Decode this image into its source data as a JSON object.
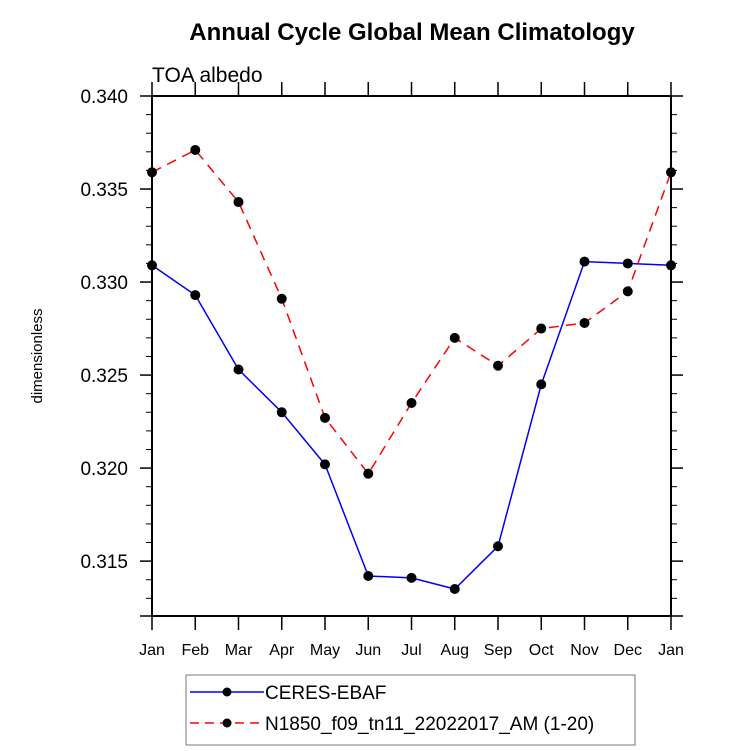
{
  "chart_data": {
    "type": "line",
    "title": "Annual Cycle Global Mean Climatology",
    "subtitle": "TOA albedo",
    "xlabel": "",
    "ylabel": "dimensionless",
    "categories": [
      "Jan",
      "Feb",
      "Mar",
      "Apr",
      "May",
      "Jun",
      "Jul",
      "Aug",
      "Sep",
      "Oct",
      "Nov",
      "Dec",
      "Jan"
    ],
    "ylim": [
      0.31205,
      0.34
    ],
    "yticks": [
      0.315,
      0.32,
      0.325,
      0.33,
      0.335,
      0.34
    ],
    "ytick_labels": [
      "0.315",
      "0.320",
      "0.325",
      "0.330",
      "0.335",
      "0.340"
    ],
    "y_minor_step": 0.001,
    "grid": false,
    "legend_position": "bottom-center",
    "series": [
      {
        "name": "CERES-EBAF",
        "color": "#0000ff",
        "line_style": "solid",
        "marker": "filled-circle",
        "marker_color": "#000000",
        "values": [
          0.3309,
          0.3293,
          0.3253,
          0.323,
          0.3202,
          0.3142,
          0.3141,
          0.3135,
          0.3158,
          0.3245,
          0.3311,
          0.331,
          0.3309
        ]
      },
      {
        "name": "N1850_f09_tn11_22022017_AM (1-20)",
        "color": "#ff0000",
        "line_style": "dashed",
        "marker": "filled-circle",
        "marker_color": "#000000",
        "values": [
          0.3359,
          0.3371,
          0.3343,
          0.3291,
          0.3227,
          0.3197,
          0.3235,
          0.327,
          0.3255,
          0.3275,
          0.3278,
          0.3295,
          0.3359
        ]
      }
    ]
  }
}
